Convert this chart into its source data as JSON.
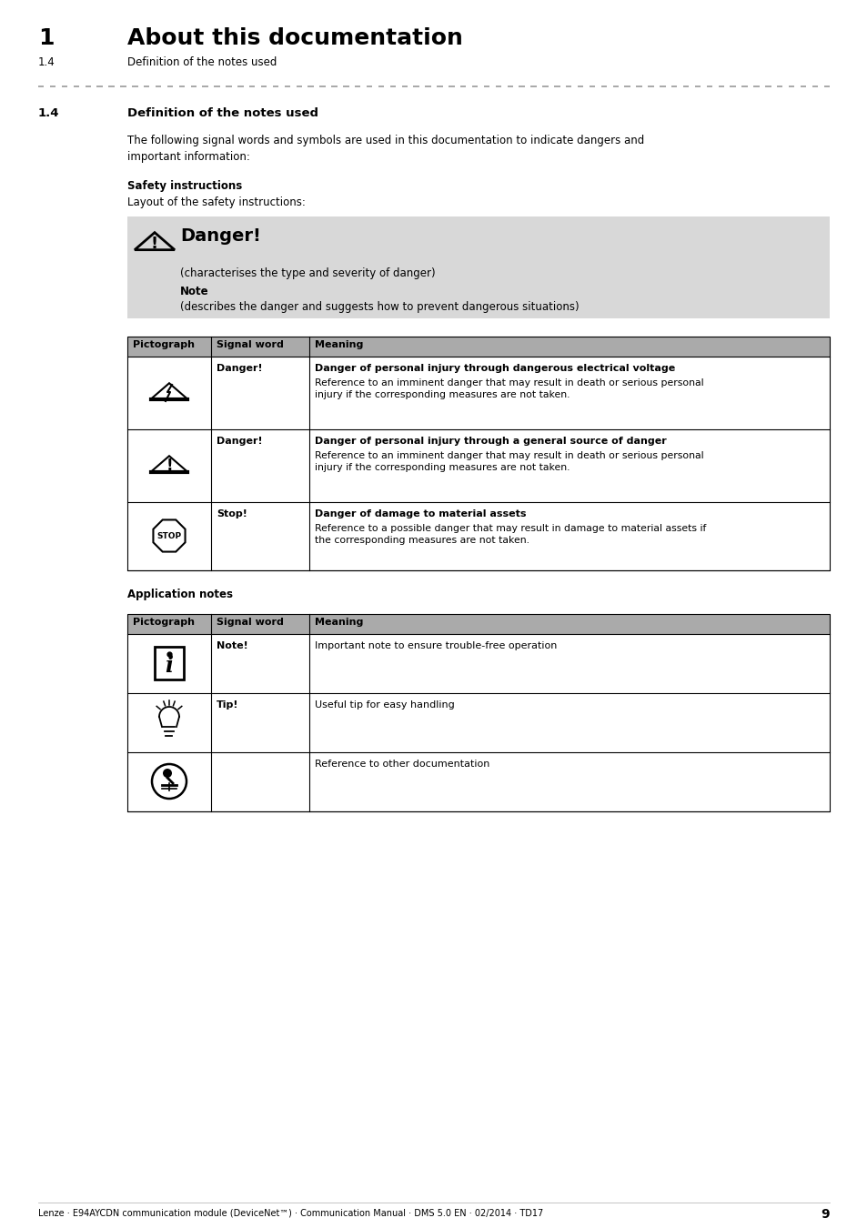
{
  "title_number": "1",
  "title_text": "About this documentation",
  "subtitle_number": "1.4",
  "subtitle_text": "Definition of the notes used",
  "section_number": "1.4",
  "section_title": "Definition of the notes used",
  "intro_text": "The following signal words and symbols are used in this documentation to indicate dangers and\nimportant information:",
  "safety_header": "Safety instructions",
  "safety_layout_text": "Layout of the safety instructions:",
  "danger_box_text": "Danger!",
  "danger_sub1": "(characterises the type and severity of danger)",
  "danger_sub2": "Note",
  "danger_sub3": "(describes the danger and suggests how to prevent dangerous situations)",
  "table1_headers": [
    "Pictograph",
    "Signal word",
    "Meaning"
  ],
  "table1_rows": [
    {
      "signal": "Danger!",
      "meaning_bold": "Danger of personal injury through dangerous electrical voltage",
      "meaning_normal": "Reference to an imminent danger that may result in death or serious personal\ninjury if the corresponding measures are not taken.",
      "icon": "lightning_triangle"
    },
    {
      "signal": "Danger!",
      "meaning_bold": "Danger of personal injury through a general source of danger",
      "meaning_normal": "Reference to an imminent danger that may result in death or serious personal\ninjury if the corresponding measures are not taken.",
      "icon": "excl_triangle"
    },
    {
      "signal": "Stop!",
      "meaning_bold": "Danger of damage to material assets",
      "meaning_normal": "Reference to a possible danger that may result in damage to material assets if\nthe corresponding measures are not taken.",
      "icon": "stop_sign"
    }
  ],
  "app_notes_header": "Application notes",
  "table2_headers": [
    "Pictograph",
    "Signal word",
    "Meaning"
  ],
  "table2_rows": [
    {
      "signal": "Note!",
      "meaning": "Important note to ensure trouble-free operation",
      "icon": "info_box"
    },
    {
      "signal": "Tip!",
      "meaning": "Useful tip for easy handling",
      "icon": "lightbulb"
    },
    {
      "signal": "",
      "meaning": "Reference to other documentation",
      "icon": "book_ref"
    }
  ],
  "footer_text": "Lenze · E94AYCDN communication module (DeviceNet™) · Communication Manual · DMS 5.0 EN · 02/2014 · TD17",
  "footer_page": "9",
  "bg_color": "#ffffff",
  "table_header_bg": "#aaaaaa",
  "danger_box_bg": "#d8d8d8",
  "text_color": "#000000"
}
